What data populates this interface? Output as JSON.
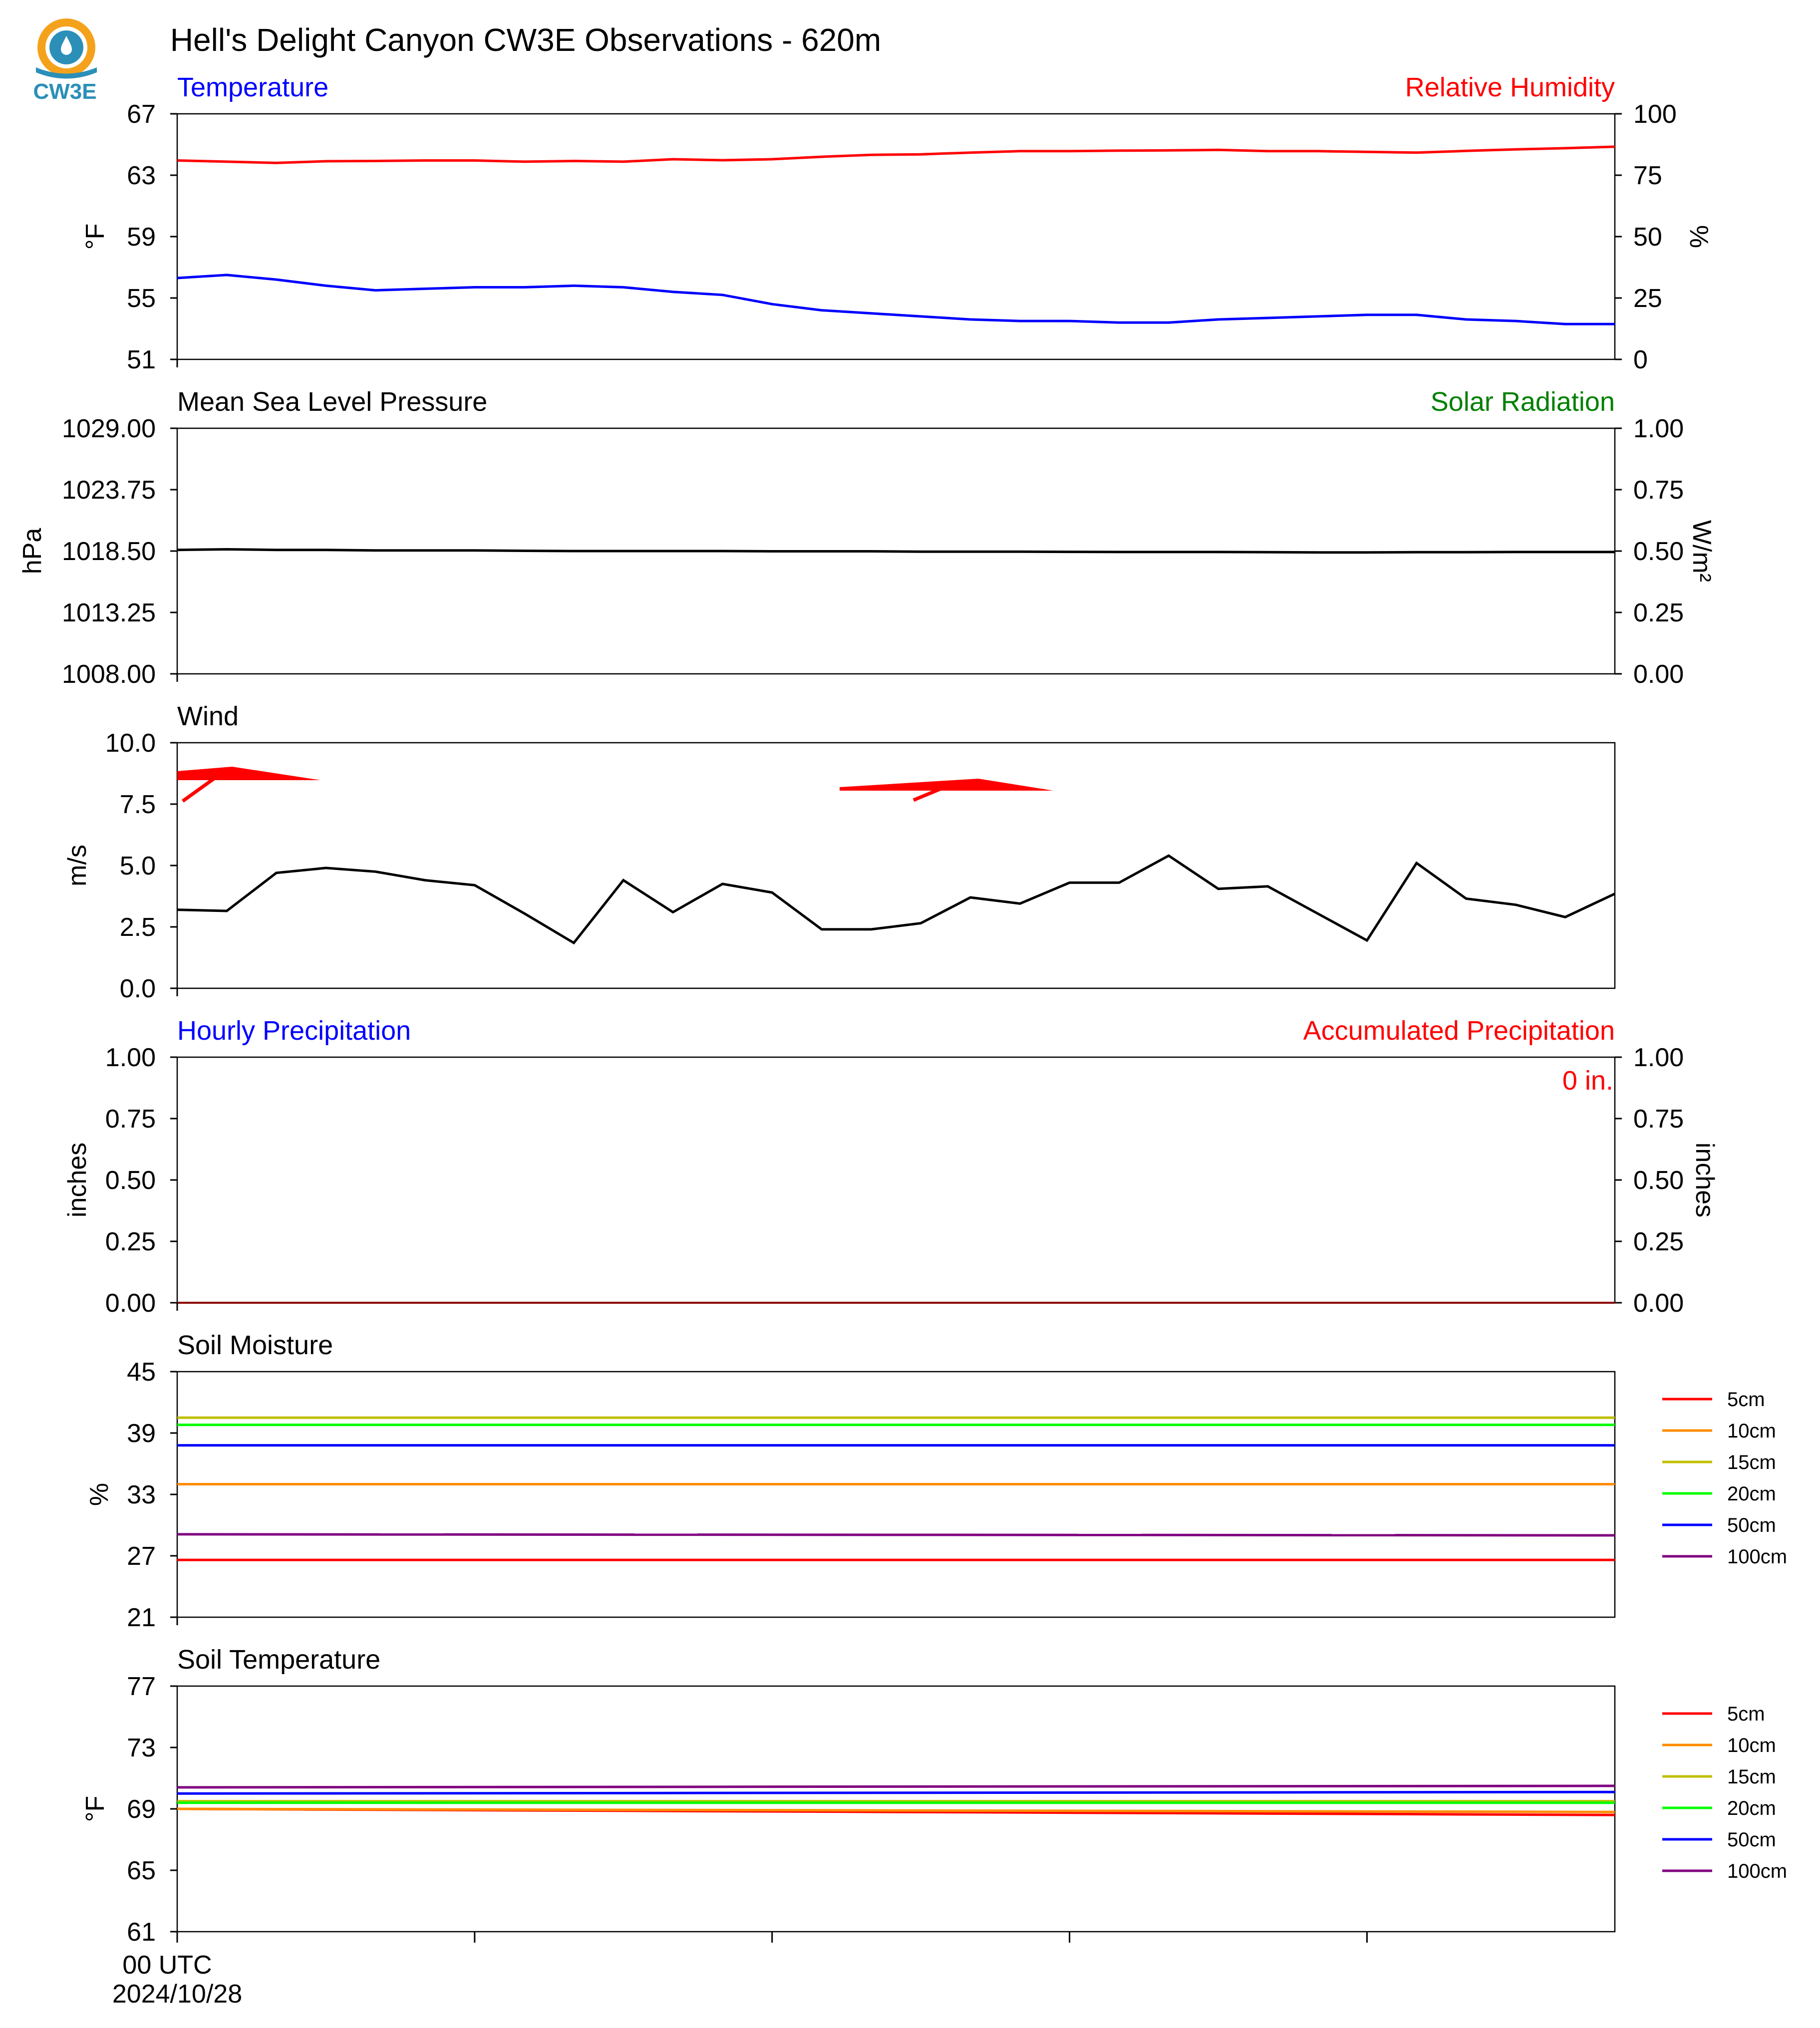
{
  "title": "Hell's Delight Canyon CW3E Observations - 620m",
  "logo": {
    "text": "CW3E",
    "colors": {
      "orange": "#f4a21c",
      "teal": "#2b8fb8"
    }
  },
  "colors": {
    "blue": "#0000ff",
    "red": "#ff0000",
    "green": "#008000",
    "black": "#000000"
  },
  "x_axis": {
    "tick_label_line1": "00 UTC",
    "tick_label_line2": "2024/10/28"
  },
  "panels": {
    "temp": {
      "left_title": "Temperature",
      "right_title": "Relative Humidity",
      "left_ylabel": "°F",
      "right_ylabel": "%",
      "left_ticks": [
        "67",
        "63",
        "59",
        "55",
        "51"
      ],
      "right_ticks": [
        "100",
        "75",
        "50",
        "25",
        "0"
      ]
    },
    "pressure": {
      "left_title": "Mean Sea Level Pressure",
      "right_title": "Solar Radiation",
      "left_ylabel": "hPa",
      "right_ylabel": "W/m²",
      "left_ticks": [
        "1029.00",
        "1023.75",
        "1018.50",
        "1013.25",
        "1008.00"
      ],
      "right_ticks": [
        "1.00",
        "0.75",
        "0.50",
        "0.25",
        "0.00"
      ]
    },
    "wind": {
      "left_title": "Wind",
      "left_ylabel": "m/s",
      "left_ticks": [
        "10.0",
        "7.5",
        "5.0",
        "2.5",
        "0.0"
      ]
    },
    "precip": {
      "left_title": "Hourly Precipitation",
      "right_title": "Accumulated Precipitation",
      "left_ylabel": "inches",
      "right_ylabel": "inches",
      "left_ticks": [
        "1.00",
        "0.75",
        "0.50",
        "0.25",
        "0.00"
      ],
      "right_ticks": [
        "1.00",
        "0.75",
        "0.50",
        "0.25",
        "0.00"
      ],
      "accum_text": "0 in."
    },
    "soilm": {
      "left_title": "Soil Moisture",
      "left_ylabel": "%",
      "left_ticks": [
        "45",
        "39",
        "33",
        "27",
        "21"
      ],
      "legend": [
        "5cm",
        "10cm",
        "15cm",
        "20cm",
        "50cm",
        "100cm"
      ]
    },
    "soilt": {
      "left_title": "Soil Temperature",
      "left_ylabel": "°F",
      "left_ticks": [
        "77",
        "73",
        "69",
        "65",
        "61"
      ],
      "legend": [
        "5cm",
        "10cm",
        "15cm",
        "20cm",
        "50cm",
        "100cm"
      ]
    }
  },
  "depth_colors": [
    "#ff0000",
    "#ff8c00",
    "#bfbf00",
    "#00ff00",
    "#0000ff",
    "#800080"
  ],
  "chart_data": [
    {
      "type": "line",
      "title": "Temperature / Relative Humidity",
      "x_hours": [
        0,
        1,
        2,
        3,
        4,
        5,
        6,
        7,
        8,
        9,
        10,
        11,
        12,
        13,
        14,
        15,
        16,
        17,
        18,
        19,
        20,
        21,
        22,
        23,
        24,
        25,
        26,
        27,
        28,
        29
      ],
      "series": [
        {
          "name": "Temperature",
          "axis": "left",
          "unit": "°F",
          "color": "#0000ff",
          "values": [
            56.3,
            56.5,
            56.2,
            55.8,
            55.5,
            55.6,
            55.7,
            55.7,
            55.8,
            55.7,
            55.4,
            55.2,
            54.6,
            54.2,
            54.0,
            53.8,
            53.6,
            53.5,
            53.5,
            53.4,
            53.4,
            53.6,
            53.7,
            53.8,
            53.9,
            53.9,
            53.6,
            53.5,
            53.3,
            53.3
          ]
        },
        {
          "name": "Relative Humidity",
          "axis": "right",
          "unit": "%",
          "color": "#ff0000",
          "values": [
            81,
            80.5,
            80,
            80.7,
            80.8,
            81,
            81,
            80.5,
            80.8,
            80.5,
            81.5,
            81.1,
            81.5,
            82.5,
            83.3,
            83.5,
            84.2,
            84.8,
            84.8,
            85,
            85.1,
            85.3,
            84.8,
            84.8,
            84.5,
            84.2,
            84.9,
            85.5,
            86,
            86.6
          ]
        }
      ],
      "left_ylim": [
        51,
        67
      ],
      "right_ylim": [
        0,
        100
      ]
    },
    {
      "type": "line",
      "title": "Mean Sea Level Pressure / Solar Radiation",
      "x_hours": [
        0,
        1,
        2,
        3,
        4,
        5,
        6,
        7,
        8,
        9,
        10,
        11,
        12,
        13,
        14,
        15,
        16,
        17,
        18,
        19,
        20,
        21,
        22,
        23,
        24,
        25,
        26,
        27,
        28,
        29
      ],
      "series": [
        {
          "name": "Mean Sea Level Pressure",
          "axis": "left",
          "unit": "hPa",
          "color": "#000000",
          "values": [
            1018.6,
            1018.65,
            1018.6,
            1018.6,
            1018.55,
            1018.55,
            1018.55,
            1018.52,
            1018.5,
            1018.5,
            1018.5,
            1018.5,
            1018.48,
            1018.48,
            1018.48,
            1018.45,
            1018.45,
            1018.45,
            1018.43,
            1018.42,
            1018.42,
            1018.42,
            1018.4,
            1018.38,
            1018.38,
            1018.4,
            1018.4,
            1018.42,
            1018.42,
            1018.42
          ]
        }
      ],
      "left_ylim": [
        1008,
        1029
      ],
      "right_ylim": [
        0,
        1
      ]
    },
    {
      "type": "line",
      "title": "Wind",
      "x_hours": [
        0,
        1,
        2,
        3,
        4,
        5,
        6,
        7,
        8,
        9,
        10,
        11,
        12,
        13,
        14,
        15,
        16,
        17,
        18,
        19,
        20,
        21,
        22,
        23,
        24,
        25,
        26,
        27,
        28,
        29
      ],
      "series": [
        {
          "name": "Wind speed",
          "unit": "m/s",
          "color": "#000000",
          "values": [
            3.2,
            3.15,
            4.7,
            4.9,
            4.75,
            4.4,
            4.2,
            3.05,
            1.85,
            4.4,
            3.1,
            4.25,
            3.9,
            2.4,
            2.4,
            2.65,
            3.7,
            3.45,
            4.3,
            4.3,
            5.4,
            4.05,
            4.15,
            3.05,
            1.95,
            5.1,
            3.65,
            3.4,
            2.9,
            3.85
          ]
        },
        {
          "name": "Wind barbs",
          "color": "#ff0000",
          "x_hours": [
            0,
            14
          ],
          "staff": [
            2.9,
            4.3
          ]
        }
      ],
      "ylim": [
        0,
        10
      ]
    },
    {
      "type": "line",
      "title": "Hourly Precipitation / Accumulated Precipitation",
      "series": [
        {
          "name": "Hourly Precipitation",
          "axis": "left",
          "unit": "inches",
          "color": "#0000ff",
          "values": [
            0,
            0
          ]
        },
        {
          "name": "Accumulated Precipitation",
          "axis": "right",
          "unit": "inches",
          "color": "#ff0000",
          "values": [
            0,
            0
          ]
        }
      ],
      "left_ylim": [
        0,
        1
      ],
      "right_ylim": [
        0,
        1
      ],
      "accumulated_total": "0 in."
    },
    {
      "type": "line",
      "title": "Soil Moisture",
      "unit": "%",
      "series": [
        {
          "name": "5cm",
          "color": "#ff0000",
          "values": [
            26.6,
            26.6
          ]
        },
        {
          "name": "10cm",
          "color": "#ff8c00",
          "values": [
            34.0,
            34.0
          ]
        },
        {
          "name": "15cm",
          "color": "#bfbf00",
          "values": [
            40.5,
            40.5
          ]
        },
        {
          "name": "20cm",
          "color": "#00ff00",
          "values": [
            39.8,
            39.8
          ]
        },
        {
          "name": "50cm",
          "color": "#0000ff",
          "values": [
            37.8,
            37.8
          ]
        },
        {
          "name": "100cm",
          "color": "#800080",
          "values": [
            29.1,
            29.0
          ]
        }
      ],
      "ylim": [
        21,
        45
      ]
    },
    {
      "type": "line",
      "title": "Soil Temperature",
      "unit": "°F",
      "series": [
        {
          "name": "5cm",
          "color": "#ff0000",
          "values": [
            69.0,
            68.6
          ]
        },
        {
          "name": "10cm",
          "color": "#ff8c00",
          "values": [
            69.0,
            68.8
          ]
        },
        {
          "name": "15cm",
          "color": "#bfbf00",
          "values": [
            69.5,
            69.5
          ]
        },
        {
          "name": "20cm",
          "color": "#00ff00",
          "values": [
            69.4,
            69.4
          ]
        },
        {
          "name": "50cm",
          "color": "#0000ff",
          "values": [
            70.0,
            70.1
          ]
        },
        {
          "name": "100cm",
          "color": "#800080",
          "values": [
            70.4,
            70.5
          ]
        }
      ],
      "ylim": [
        61,
        77
      ]
    }
  ]
}
